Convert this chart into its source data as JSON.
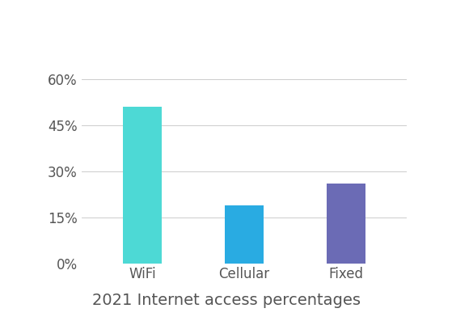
{
  "categories": [
    "WiFi",
    "Cellular",
    "Fixed"
  ],
  "values": [
    51,
    19,
    26
  ],
  "bar_colors": [
    "#4DD9D5",
    "#29ABE2",
    "#6B6BB5"
  ],
  "title": "2021 Internet access percentages",
  "yticks": [
    0,
    15,
    30,
    45,
    60
  ],
  "ylim": [
    0,
    65
  ],
  "background_color": "#ffffff",
  "grid_color": "#cccccc",
  "title_fontsize": 14,
  "tick_fontsize": 12,
  "bar_width": 0.38
}
